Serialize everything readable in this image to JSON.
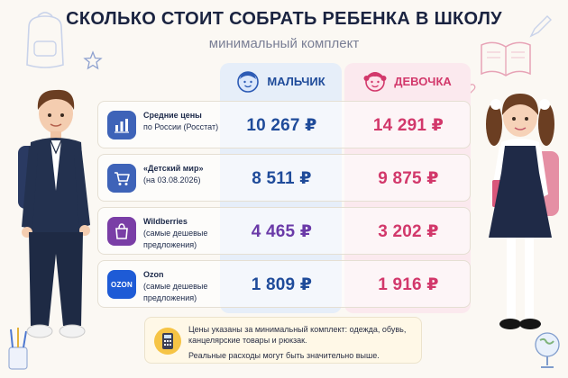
{
  "header": {
    "title": "СКОЛЬКО СТОИТ СОБРАТЬ РЕБЕНКА В ШКОЛУ",
    "subtitle": "минимальный комплект"
  },
  "columns": {
    "boy_label": "МАЛЬЧИК",
    "girl_label": "ДЕВОЧКА",
    "boy_color": "#1f4b9a",
    "girl_color": "#d2386b"
  },
  "rows": [
    {
      "icon": "bar-chart-icon",
      "icon_color": "#3e63b8",
      "name": "Средние цены",
      "detail": "по России (Росстат)",
      "boy": "10 267 ₽",
      "girl": "14 291 ₽",
      "boy_color": "#1f4b9a",
      "girl_color": "#d2386b"
    },
    {
      "icon": "shopping-cart-icon",
      "icon_color": "#3e63b8",
      "name": "«Детский мир»",
      "detail": "(на 03.08.2026)",
      "boy": "8 511 ₽",
      "girl": "9 875 ₽",
      "boy_color": "#1f4b9a",
      "girl_color": "#d2386b"
    },
    {
      "icon": "shopping-bag-icon",
      "icon_color": "#7a3ea6",
      "name": "Wildberries",
      "detail": "(самые дешевые предложения)",
      "boy": "4 465 ₽",
      "girl": "3 202 ₽",
      "boy_color": "#6a3aa8",
      "girl_color": "#d2386b"
    },
    {
      "icon": "ozon-logo",
      "icon_color": "#1e5bd6",
      "icon_text": "OZON",
      "name": "Ozon",
      "detail": "(самые дешевые предложения)",
      "boy": "1 809 ₽",
      "girl": "1 916 ₽",
      "boy_color": "#1f4b9a",
      "girl_color": "#d2386b"
    }
  ],
  "note": {
    "icon": "calculator-icon",
    "line1": "Цены указаны за минимальный комплект: одежда, обувь, канцелярские товары и рюкзак.",
    "line2": "Реальные расходы могут быть значительно выше."
  }
}
